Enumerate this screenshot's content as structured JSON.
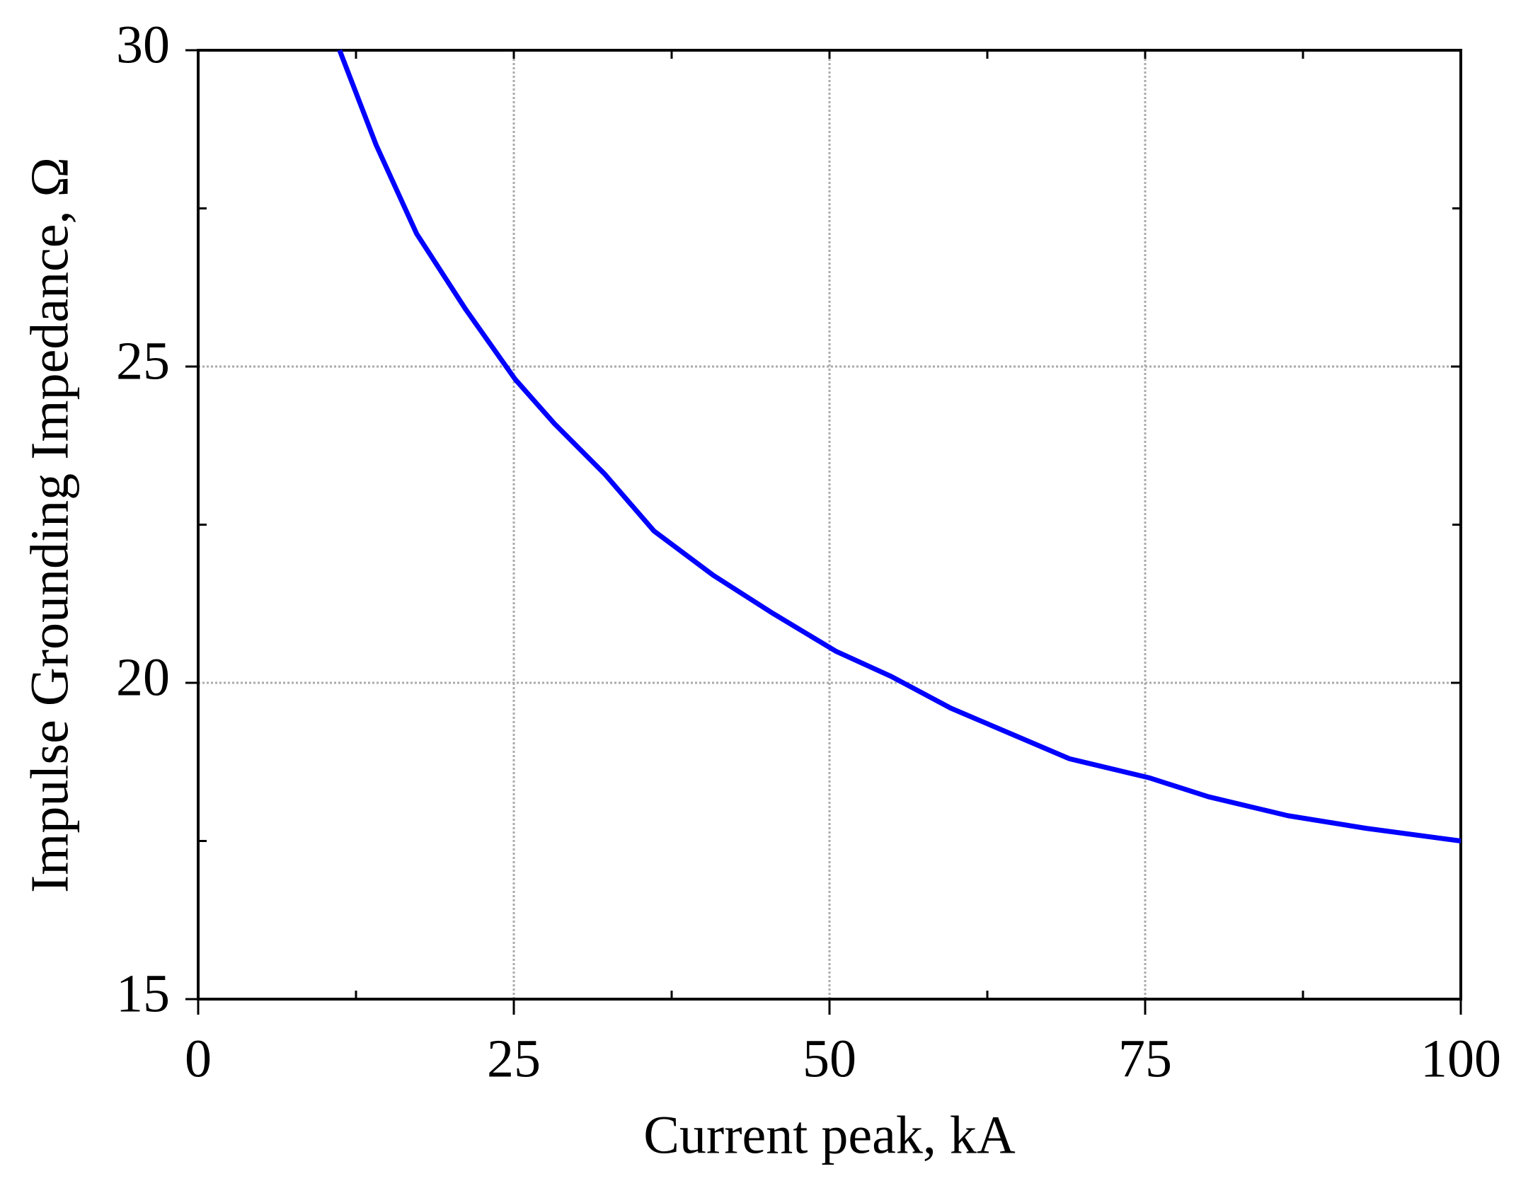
{
  "chart_data": {
    "type": "line",
    "x_label": "Current peak, kA",
    "y_label": "Impulse Grounding Impedance, Ω",
    "series": [
      {
        "color": "#0000ff",
        "x": [
          11.2,
          14.1,
          17.3,
          21.2,
          25.1,
          28.2,
          32.2,
          36.1,
          40.8,
          45.5,
          50.5,
          54.9,
          59.6,
          64.3,
          69.0,
          75.3,
          80.0,
          86.3,
          92.5,
          100
        ],
        "values": [
          30,
          28.5,
          27.1,
          25.9,
          24.8,
          24.1,
          23.3,
          22.4,
          21.7,
          21.1,
          20.5,
          20.1,
          19.6,
          19.2,
          18.8,
          18.5,
          18.2,
          17.9,
          17.7,
          17.5
        ]
      }
    ],
    "xlim": [
      0,
      100
    ],
    "xticks": [
      0,
      25,
      50,
      75,
      100
    ],
    "xminorticks": [
      12.5,
      37.5,
      62.5,
      87.5
    ],
    "ylim": [
      15,
      30
    ],
    "yticks": [
      15,
      20,
      25,
      30
    ],
    "yminorticks": [
      17.5,
      22.5,
      27.5
    ],
    "grid": true
  }
}
